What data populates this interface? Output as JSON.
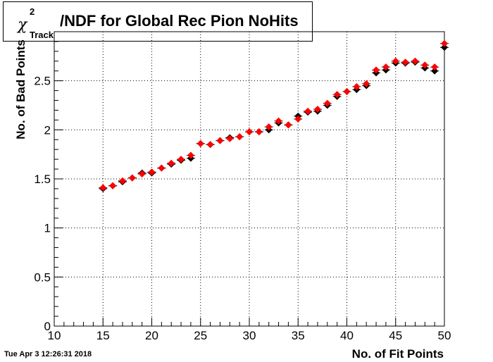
{
  "title": {
    "symbol": "χ",
    "superscript": "2",
    "subscript": "Track",
    "text": "/NDF for Global Rec Pion NoHits"
  },
  "timestamp": "Tue Apr  3 12:26:31 2018",
  "colors": {
    "series_black": "#000000",
    "series_red": "#ff0000",
    "grid": "#000000"
  },
  "chart_data": {
    "type": "scatter",
    "xlabel": "No. of Fit Points",
    "ylabel": "No. of Bad Points",
    "xlim": [
      10,
      50
    ],
    "ylim": [
      0,
      3.0
    ],
    "x_ticks": [
      10,
      15,
      20,
      25,
      30,
      35,
      40,
      45,
      50
    ],
    "y_ticks": [
      0,
      0.5,
      1,
      1.5,
      2,
      2.5
    ],
    "x_tick_labels": [
      "10",
      "15",
      "20",
      "25",
      "30",
      "35",
      "40",
      "45",
      "50"
    ],
    "y_tick_labels": [
      "0",
      "0.5",
      "1",
      "1.5",
      "2",
      "2.5"
    ],
    "grid": true,
    "x": [
      15,
      16,
      17,
      18,
      19,
      20,
      21,
      22,
      23,
      24,
      25,
      26,
      27,
      28,
      29,
      30,
      31,
      32,
      33,
      34,
      35,
      36,
      37,
      38,
      39,
      40,
      41,
      42,
      43,
      44,
      45,
      46,
      47,
      48,
      49,
      50
    ],
    "series": [
      {
        "values": [
          1.4,
          1.43,
          1.47,
          1.51,
          1.56,
          1.56,
          1.61,
          1.65,
          1.69,
          1.71,
          1.86,
          1.85,
          1.89,
          1.92,
          1.93,
          1.98,
          1.98,
          2.0,
          2.07,
          2.05,
          2.14,
          2.18,
          2.19,
          2.25,
          2.34,
          2.39,
          2.41,
          2.45,
          2.58,
          2.61,
          2.68,
          2.68,
          2.69,
          2.63,
          2.6,
          2.84
        ]
      },
      {
        "values": [
          1.41,
          1.43,
          1.48,
          1.51,
          1.55,
          1.57,
          1.61,
          1.66,
          1.7,
          1.74,
          1.86,
          1.85,
          1.89,
          1.91,
          1.93,
          1.98,
          1.98,
          2.03,
          2.09,
          2.05,
          2.11,
          2.19,
          2.21,
          2.27,
          2.36,
          2.39,
          2.44,
          2.47,
          2.61,
          2.64,
          2.7,
          2.69,
          2.7,
          2.66,
          2.64,
          2.88
        ]
      }
    ]
  }
}
